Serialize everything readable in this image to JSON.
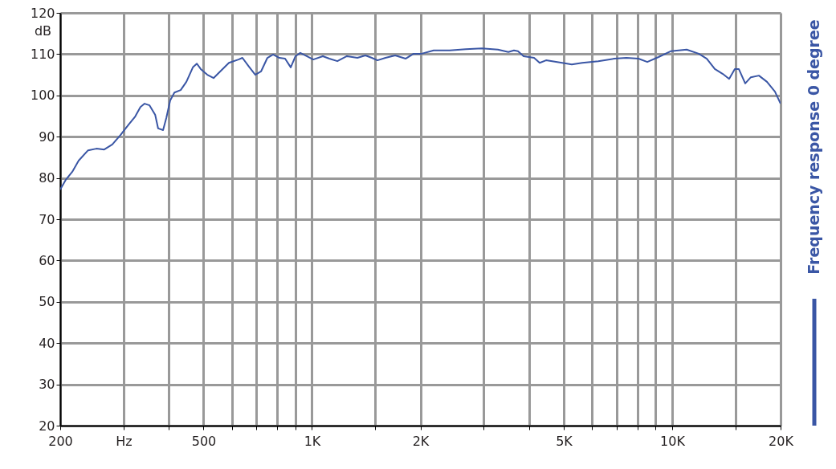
{
  "chart_data": {
    "type": "line",
    "ylabel": "dB",
    "xlim": [
      200,
      20000
    ],
    "ylim": [
      20,
      120
    ],
    "log": "x",
    "grid": true,
    "legend": "right",
    "marker": "none",
    "line_style": "solid",
    "xticks": [
      200,
      {
        "value": 300,
        "label": "Hz"
      },
      {
        "value": 400,
        "label": null
      },
      500,
      {
        "value": 600,
        "label": null
      },
      {
        "value": 700,
        "label": null
      },
      {
        "value": 800,
        "label": null
      },
      {
        "value": 900,
        "label": null
      },
      {
        "value": 1000,
        "label": "1K"
      },
      {
        "value": 1500,
        "label": null
      },
      {
        "value": 2000,
        "label": "2K"
      },
      {
        "value": 3000,
        "label": null
      },
      {
        "value": 4000,
        "label": null
      },
      {
        "value": 5000,
        "label": "5K"
      },
      {
        "value": 6000,
        "label": null
      },
      {
        "value": 7000,
        "label": null
      },
      {
        "value": 8000,
        "label": null
      },
      {
        "value": 9000,
        "label": null
      },
      {
        "value": 10000,
        "label": "10K"
      },
      {
        "value": 15000,
        "label": null
      },
      {
        "value": 20000,
        "label": "20K"
      }
    ],
    "yticks": [
      20,
      30,
      40,
      50,
      60,
      70,
      80,
      90,
      100,
      110,
      120
    ],
    "series": [
      {
        "name": "Frequency response 0 degree",
        "color": "#3a56a5",
        "x": [
          200,
          207,
          216,
          225,
          239,
          252,
          265,
          279,
          294,
          310,
          323,
          334,
          343,
          354,
          367,
          374,
          386,
          394,
          404,
          415,
          432,
          448,
          467,
          479,
          491,
          512,
          533,
          559,
          588,
          625,
          641,
          668,
          696,
          722,
          752,
          780,
          812,
          842,
          873,
          900,
          928,
          967,
          1008,
          1072,
          1117,
          1176,
          1250,
          1337,
          1407,
          1466,
          1520,
          1600,
          1702,
          1819,
          1915,
          2015,
          2177,
          2413,
          2673,
          2962,
          3282,
          3509,
          3637,
          3732,
          3868,
          4136,
          4287,
          4466,
          4950,
          5264,
          5628,
          6237,
          6910,
          7464,
          8062,
          8530,
          9167,
          9903,
          10972,
          11852,
          12477,
          13133,
          13823,
          14395,
          14923,
          15311,
          15953,
          16541,
          17412,
          18330,
          19295,
          20000
        ],
        "values": [
          77.2,
          79.5,
          81.5,
          84.2,
          86.7,
          87.1,
          86.9,
          88.1,
          90.4,
          93.0,
          94.9,
          97.2,
          98.0,
          97.6,
          95.3,
          92.0,
          91.6,
          94.5,
          98.8,
          100.7,
          101.3,
          103.3,
          106.8,
          107.7,
          106.4,
          105.0,
          104.2,
          106.0,
          107.9,
          108.7,
          109.1,
          107.0,
          105.0,
          105.8,
          109.1,
          109.9,
          109.1,
          108.9,
          106.8,
          109.5,
          110.3,
          109.5,
          108.7,
          109.5,
          108.9,
          108.3,
          109.5,
          109.1,
          109.7,
          109.1,
          108.5,
          109.1,
          109.7,
          108.9,
          110.1,
          110.1,
          110.9,
          110.9,
          111.2,
          111.4,
          111.1,
          110.5,
          110.9,
          110.7,
          109.5,
          109.1,
          107.9,
          108.5,
          107.9,
          107.5,
          107.9,
          108.3,
          108.9,
          109.1,
          108.9,
          108.1,
          109.3,
          110.7,
          111.1,
          110.1,
          108.9,
          106.4,
          105.2,
          104.0,
          106.4,
          106.4,
          102.9,
          104.4,
          104.8,
          103.3,
          100.9,
          98.0
        ]
      }
    ]
  }
}
